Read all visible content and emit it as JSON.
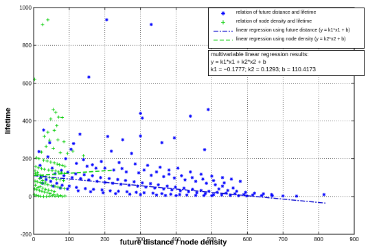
{
  "chart_data": {
    "type": "scatter",
    "title": "",
    "xlabel": "future distance / node density",
    "ylabel": "lifetime",
    "xlim": [
      0,
      900
    ],
    "ylim": [
      -200,
      1000
    ],
    "xticks": [
      0,
      100,
      200,
      300,
      400,
      500,
      600,
      700,
      800,
      900
    ],
    "yticks": [
      -200,
      0,
      200,
      400,
      600,
      800,
      1000
    ],
    "grid": true,
    "legend_position": "top-right",
    "colors": {
      "future": "#0000ff",
      "density": "#00cc00"
    },
    "series": [
      {
        "name": "relation of future distance and lifetime",
        "marker": "asterisk",
        "color": "#0000ff",
        "points": [
          [
            205,
            935
          ],
          [
            330,
            910
          ],
          [
            155,
            632
          ],
          [
            300,
            440
          ],
          [
            305,
            415
          ],
          [
            490,
            460
          ],
          [
            440,
            425
          ],
          [
            28,
            352
          ],
          [
            130,
            330
          ],
          [
            208,
            318
          ],
          [
            300,
            320
          ],
          [
            395,
            310
          ],
          [
            45,
            285
          ],
          [
            112,
            280
          ],
          [
            250,
            300
          ],
          [
            360,
            285
          ],
          [
            480,
            248
          ],
          [
            105,
            250
          ],
          [
            218,
            240
          ],
          [
            275,
            228
          ],
          [
            15,
            238
          ],
          [
            40,
            210
          ],
          [
            90,
            200
          ],
          [
            140,
            195
          ],
          [
            190,
            185
          ],
          [
            240,
            180
          ],
          [
            285,
            172
          ],
          [
            320,
            165
          ],
          [
            355,
            155
          ],
          [
            380,
            140
          ],
          [
            405,
            150
          ],
          [
            440,
            130
          ],
          [
            470,
            118
          ],
          [
            500,
            108
          ],
          [
            530,
            100
          ],
          [
            555,
            92
          ],
          [
            580,
            80
          ],
          [
            18,
            165
          ],
          [
            52,
            150
          ],
          [
            78,
            138
          ],
          [
            96,
            128
          ],
          [
            118,
            120
          ],
          [
            142,
            115
          ],
          [
            165,
            110
          ],
          [
            188,
            100
          ],
          [
            212,
            95
          ],
          [
            236,
            90
          ],
          [
            258,
            85
          ],
          [
            282,
            78
          ],
          [
            305,
            72
          ],
          [
            328,
            68
          ],
          [
            350,
            62
          ],
          [
            375,
            55
          ],
          [
            398,
            50
          ],
          [
            422,
            44
          ],
          [
            446,
            38
          ],
          [
            470,
            32
          ],
          [
            492,
            28
          ],
          [
            515,
            22
          ],
          [
            540,
            18
          ],
          [
            565,
            14
          ],
          [
            590,
            10
          ],
          [
            615,
            8
          ],
          [
            640,
            5
          ],
          [
            670,
            4
          ],
          [
            700,
            3
          ],
          [
            738,
            2
          ],
          [
            815,
            10
          ],
          [
            60,
            120
          ],
          [
            85,
            110
          ],
          [
            108,
            100
          ],
          [
            132,
            95
          ],
          [
            155,
            88
          ],
          [
            178,
            80
          ],
          [
            200,
            75
          ],
          [
            222,
            70
          ],
          [
            245,
            65
          ],
          [
            268,
            60
          ],
          [
            292,
            55
          ],
          [
            315,
            50
          ],
          [
            340,
            45
          ],
          [
            365,
            40
          ],
          [
            388,
            35
          ],
          [
            412,
            30
          ],
          [
            435,
            25
          ],
          [
            458,
            20
          ],
          [
            482,
            15
          ],
          [
            505,
            10
          ],
          [
            528,
            8
          ],
          [
            552,
            6
          ],
          [
            575,
            4
          ],
          [
            598,
            3
          ],
          [
            20,
            100
          ],
          [
            35,
            90
          ],
          [
            48,
            80
          ],
          [
            65,
            70
          ],
          [
            80,
            60
          ],
          [
            100,
            55
          ],
          [
            120,
            48
          ],
          [
            145,
            42
          ],
          [
            168,
            38
          ],
          [
            192,
            35
          ],
          [
            215,
            30
          ],
          [
            238,
            28
          ],
          [
            262,
            25
          ],
          [
            288,
            22
          ],
          [
            310,
            20
          ],
          [
            335,
            18
          ],
          [
            360,
            15
          ],
          [
            385,
            12
          ],
          [
            410,
            10
          ],
          [
            430,
            8
          ],
          [
            455,
            6
          ],
          [
            478,
            5
          ],
          [
            500,
            4
          ],
          [
            25,
            70
          ],
          [
            55,
            55
          ],
          [
            75,
            45
          ],
          [
            95,
            40
          ],
          [
            125,
            30
          ],
          [
            160,
            25
          ],
          [
            195,
            20
          ],
          [
            230,
            15
          ],
          [
            270,
            12
          ],
          [
            300,
            10
          ],
          [
            345,
            8
          ],
          [
            370,
            6
          ],
          [
            400,
            5
          ],
          [
            150,
            160
          ],
          [
            175,
            150
          ],
          [
            225,
            140
          ],
          [
            260,
            130
          ],
          [
            295,
            125
          ],
          [
            330,
            112
          ],
          [
            365,
            105
          ],
          [
            395,
            98
          ],
          [
            425,
            88
          ],
          [
            455,
            80
          ],
          [
            485,
            70
          ],
          [
            510,
            62
          ],
          [
            530,
            55
          ],
          [
            560,
            45
          ],
          [
            120,
            175
          ],
          [
            165,
            168
          ],
          [
            200,
            150
          ],
          [
            248,
            148
          ],
          [
            310,
            140
          ],
          [
            345,
            130
          ],
          [
            380,
            118
          ],
          [
            415,
            110
          ],
          [
            445,
            100
          ],
          [
            475,
            92
          ],
          [
            505,
            84
          ],
          [
            535,
            72
          ],
          [
            520,
            40
          ],
          [
            545,
            32
          ],
          [
            570,
            28
          ],
          [
            595,
            22
          ],
          [
            620,
            18
          ],
          [
            645,
            14
          ],
          [
            668,
            10
          ]
        ]
      },
      {
        "name": "relation of node density and lifetime",
        "marker": "plus",
        "color": "#00cc00",
        "points": [
          [
            25,
            910
          ],
          [
            40,
            935
          ],
          [
            3,
            620
          ],
          [
            55,
            460
          ],
          [
            62,
            445
          ],
          [
            70,
            420
          ],
          [
            80,
            418
          ],
          [
            48,
            410
          ],
          [
            65,
            375
          ],
          [
            58,
            350
          ],
          [
            40,
            340
          ],
          [
            30,
            318
          ],
          [
            68,
            300
          ],
          [
            45,
            298
          ],
          [
            85,
            290
          ],
          [
            35,
            265
          ],
          [
            55,
            255
          ],
          [
            22,
            235
          ],
          [
            75,
            232
          ],
          [
            110,
            240
          ],
          [
            95,
            228
          ],
          [
            140,
            215
          ],
          [
            8,
            205
          ],
          [
            15,
            200
          ],
          [
            28,
            192
          ],
          [
            38,
            188
          ],
          [
            48,
            182
          ],
          [
            58,
            178
          ],
          [
            66,
            172
          ],
          [
            72,
            168
          ],
          [
            80,
            165
          ],
          [
            88,
            160
          ],
          [
            6,
            158
          ],
          [
            14,
            152
          ],
          [
            22,
            148
          ],
          [
            30,
            144
          ],
          [
            42,
            140
          ],
          [
            52,
            138
          ],
          [
            62,
            135
          ],
          [
            70,
            130
          ],
          [
            78,
            126
          ],
          [
            86,
            122
          ],
          [
            5,
            120
          ],
          [
            12,
            116
          ],
          [
            20,
            112
          ],
          [
            26,
            108
          ],
          [
            34,
            104
          ],
          [
            44,
            100
          ],
          [
            54,
            96
          ],
          [
            64,
            92
          ],
          [
            74,
            88
          ],
          [
            84,
            84
          ],
          [
            4,
            82
          ],
          [
            10,
            78
          ],
          [
            18,
            74
          ],
          [
            24,
            70
          ],
          [
            32,
            66
          ],
          [
            40,
            62
          ],
          [
            50,
            58
          ],
          [
            60,
            54
          ],
          [
            68,
            50
          ],
          [
            76,
            46
          ],
          [
            86,
            42
          ],
          [
            3,
            40
          ],
          [
            9,
            36
          ],
          [
            16,
            32
          ],
          [
            23,
            28
          ],
          [
            30,
            24
          ],
          [
            38,
            20
          ],
          [
            46,
            16
          ],
          [
            56,
            12
          ],
          [
            66,
            8
          ],
          [
            76,
            5
          ],
          [
            88,
            3
          ],
          [
            2,
            10
          ],
          [
            8,
            6
          ],
          [
            14,
            3
          ],
          [
            20,
            1
          ],
          [
            28,
            0
          ],
          [
            36,
            0
          ],
          [
            44,
            2
          ],
          [
            52,
            4
          ],
          [
            60,
            2
          ],
          [
            70,
            1
          ],
          [
            80,
            0
          ],
          [
            5,
            60
          ],
          [
            12,
            48
          ],
          [
            18,
            52
          ],
          [
            26,
            44
          ],
          [
            34,
            38
          ],
          [
            42,
            34
          ],
          [
            50,
            30
          ],
          [
            58,
            26
          ],
          [
            4,
            135
          ],
          [
            11,
            128
          ],
          [
            17,
            96
          ],
          [
            25,
            85
          ],
          [
            33,
            76
          ]
        ]
      },
      {
        "name": "linear regression using future distance (y = k1*x1 + b)",
        "line_style": "dashdot",
        "color": "#0000cc",
        "x": [
          0,
          820
        ],
        "y": [
          110.4,
          -35
        ]
      },
      {
        "name": "linear regression using node density (y = k2*x2 + b)",
        "line_style": "dashed",
        "color": "#00cc00",
        "x": [
          0,
          225
        ],
        "y": [
          110.4,
          139.5
        ]
      }
    ],
    "annotation": {
      "lines": [
        "multivariable linear regression results:",
        "y = k1*x1 + k2*x2 + b",
        "k1 = −0.1777;  k2 = 0.1293;  b = 110.4173"
      ]
    }
  }
}
